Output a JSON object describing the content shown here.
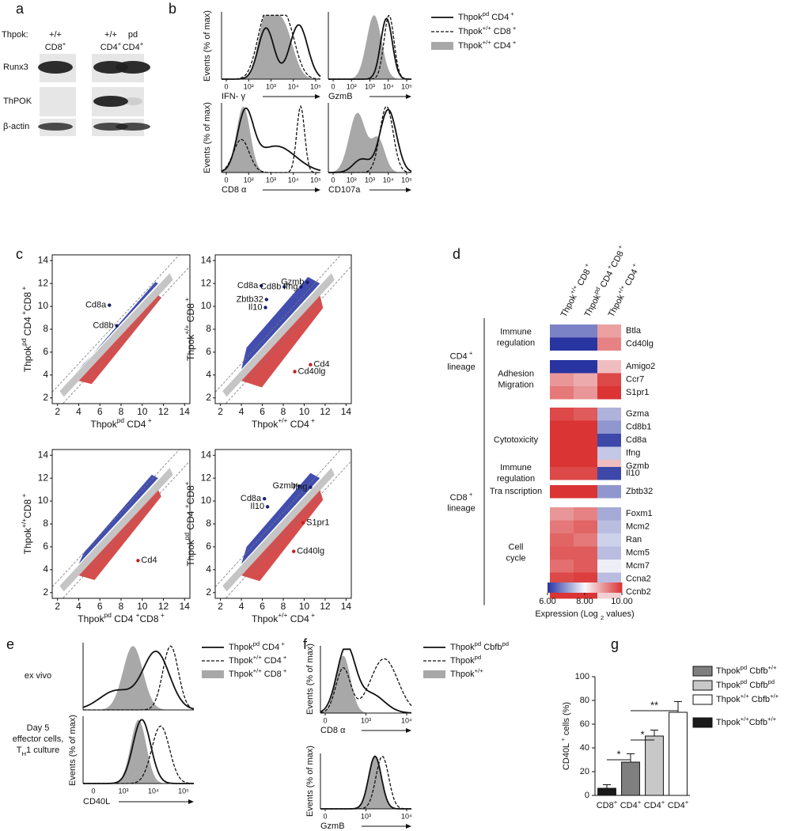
{
  "panel_labels": {
    "a": "a",
    "b": "b",
    "c": "c",
    "d": "d",
    "e": "e",
    "f": "f",
    "g": "g"
  },
  "a": {
    "row_label": "Thpok:",
    "genotypes": [
      "+/+",
      "+/+",
      "pd"
    ],
    "cells": [
      [
        "CD8",
        {
          "sup": "+"
        }
      ],
      [
        "CD4",
        {
          "sup": "+"
        }
      ],
      [
        "CD4",
        {
          "sup": "+"
        }
      ]
    ],
    "proteins": [
      "Runx3",
      "ThPOK",
      "β-actin"
    ]
  },
  "b": {
    "y_label": "Events (% of max)",
    "plots": [
      {
        "x_label": "IFN- γ",
        "ticks": [
          "0",
          "10²",
          "10³",
          "10⁴",
          "10⁵"
        ]
      },
      {
        "x_label": "GzmB",
        "ticks": [
          "0",
          "10²",
          "10³",
          "10⁴",
          "10⁵"
        ]
      },
      {
        "x_label": "CD8 α",
        "ticks": [
          "0",
          "10²",
          "10³",
          "10⁴",
          "10⁵"
        ]
      },
      {
        "x_label": "CD107a",
        "ticks": [
          "0",
          "10²",
          "10³",
          "10⁴",
          "10⁵"
        ]
      }
    ],
    "legend": [
      [
        "Thpok",
        {
          "sup": "pd"
        },
        " CD4",
        {
          "sup": " +"
        }
      ],
      [
        "Thpok",
        {
          "sup": "+/+"
        },
        " CD8",
        {
          "sup": " +"
        }
      ],
      [
        "Thpok",
        {
          "sup": "+/+"
        },
        " CD4",
        {
          "sup": " +"
        }
      ]
    ]
  },
  "c": {
    "xlim": [
      1.5,
      14.5
    ],
    "ylim": [
      1.5,
      14.5
    ],
    "xticks": [
      2,
      4,
      6,
      8,
      10,
      12,
      14
    ],
    "yticks": [
      2,
      4,
      6,
      8,
      10,
      12,
      14
    ],
    "plots": [
      {
        "x_label": [
          "Thpok",
          {
            "sup": "pd"
          },
          " CD4",
          {
            "sup": " +"
          }
        ],
        "y_label": [
          "Thpok",
          {
            "sup": "pd"
          },
          " CD4",
          {
            "sup": " +"
          },
          "CD8",
          {
            "sup": " +"
          }
        ],
        "genes": [
          {
            "name": "Cd8b",
            "x": 7.6,
            "y": 8.3
          },
          {
            "name": "Cd8a",
            "x": 6.9,
            "y": 10.1
          }
        ]
      },
      {
        "x_label": [
          "Thpok",
          {
            "sup": "+/+"
          },
          " CD4",
          {
            "sup": " +"
          }
        ],
        "y_label": [
          "Thpok",
          {
            "sup": "+/+"
          },
          " CD8",
          {
            "sup": " +"
          }
        ],
        "genes": [
          {
            "name": "Cd8a",
            "x": 5.9,
            "y": 11.8
          },
          {
            "name": "Cd8b",
            "x": 8.1,
            "y": 11.7
          },
          {
            "name": "Ifng",
            "x": 9.7,
            "y": 11.7
          },
          {
            "name": "Gzmb",
            "x": 10.3,
            "y": 12.1
          },
          {
            "name": "Zbtb32",
            "x": 6.4,
            "y": 10.6
          },
          {
            "name": "Il10",
            "x": 6.3,
            "y": 9.9
          },
          {
            "name": "Cd4",
            "x": 10.6,
            "y": 4.9
          },
          {
            "name": "Cd40lg",
            "x": 9.1,
            "y": 4.3
          }
        ]
      },
      {
        "x_label": [
          "Thpok",
          {
            "sup": "pd"
          },
          " CD4 ",
          {
            "sup": "+"
          },
          "CD8",
          {
            "sup": " +"
          }
        ],
        "y_label": [
          "Thpok",
          {
            "sup": "+/+"
          },
          "CD8",
          {
            "sup": " +"
          }
        ],
        "genes": [
          {
            "name": "Cd4",
            "x": 9.6,
            "y": 4.8
          }
        ]
      },
      {
        "x_label": [
          "Thpok",
          {
            "sup": "+/+"
          },
          " CD4",
          {
            "sup": " +"
          }
        ],
        "y_label": [
          "Thpok",
          {
            "sup": "pd"
          },
          " CD4 ",
          {
            "sup": "+"
          },
          "CD8",
          {
            "sup": "+"
          }
        ],
        "genes": [
          {
            "name": "Gzmb",
            "x": 9.5,
            "y": 11.3
          },
          {
            "name": "Ifng",
            "x": 10.6,
            "y": 11.2
          },
          {
            "name": "Cd8a",
            "x": 6.2,
            "y": 10.2
          },
          {
            "name": "Il10",
            "x": 6.5,
            "y": 9.5
          },
          {
            "name": "S1pr1",
            "x": 9.9,
            "y": 8.1
          },
          {
            "name": "Cd40lg",
            "x": 9.0,
            "y": 5.6
          }
        ]
      }
    ]
  },
  "d": {
    "columns": [
      [
        "Thpok",
        {
          "sup": "+/+"
        },
        " CD8",
        {
          "sup": " +"
        }
      ],
      [
        "Thpok",
        {
          "sup": "pd"
        },
        " CD4",
        {
          "sup": " +"
        },
        "CD8",
        {
          "sup": " +"
        }
      ],
      [
        "Thpok",
        {
          "sup": "+/+"
        },
        " CD4",
        {
          "sup": " +"
        }
      ]
    ],
    "lineages": [
      {
        "label_lines": [
          [
            "CD4",
            {
              "sup": " +"
            }
          ],
          "lineage"
        ],
        "groups": [
          {
            "label_lines": [
              "Immune",
              "regulation"
            ],
            "genes": [
              "Btla",
              "Cd40lg"
            ],
            "values": [
              [
                6.8,
                6.8,
                8.9
              ],
              [
                6.0,
                6.0,
                9.2
              ]
            ]
          },
          {
            "label_lines": [
              "Adhesion",
              "Migration"
            ],
            "genes": [
              "Amigo2",
              "Ccr7",
              "S1pr1"
            ],
            "values": [
              [
                6.0,
                6.0,
                8.6
              ],
              [
                9.0,
                8.8,
                9.8
              ],
              [
                9.3,
                9.0,
                10.0
              ]
            ]
          }
        ]
      },
      {
        "label_lines": [
          [
            "CD8",
            {
              "sup": " +"
            }
          ],
          "lineage"
        ],
        "groups": [
          {
            "label_lines": [
              "Cytotoxicity"
            ],
            "genes": [
              "Gzma",
              "Cd8b1",
              "Cd8a",
              "Ifng",
              "Gzmb"
            ],
            "values": [
              [
                9.8,
                9.6,
                7.3
              ],
              [
                10.0,
                10.0,
                7.0
              ],
              [
                10.0,
                10.0,
                6.2
              ],
              [
                10.0,
                10.0,
                7.5
              ],
              [
                10.0,
                10.0,
                8.6
              ]
            ]
          },
          {
            "label_lines": [
              "Immune",
              "regulation"
            ],
            "genes": [
              "Il10"
            ],
            "values": [
              [
                9.8,
                9.8,
                6.2
              ]
            ]
          },
          {
            "label_lines": [
              "Tra nscription"
            ],
            "genes": [
              "Zbtb32"
            ],
            "values": [
              [
                10.0,
                10.0,
                7.0
              ]
            ]
          },
          {
            "label_lines": [
              "Cell",
              "cycle"
            ],
            "genes": [
              "Foxm1",
              "Mcm2",
              "Ran",
              "Mcm5",
              "Mcm7",
              "Ccna2",
              "Ccnb2"
            ],
            "values": [
              [
                9.0,
                9.2,
                7.2
              ],
              [
                9.3,
                9.5,
                7.4
              ],
              [
                9.5,
                9.3,
                7.6
              ],
              [
                9.6,
                9.6,
                7.4
              ],
              [
                9.4,
                9.6,
                7.9
              ],
              [
                9.8,
                9.9,
                7.4
              ],
              [
                10.0,
                10.0,
                8.4
              ]
            ]
          }
        ]
      }
    ],
    "colorbar": {
      "lim": [
        6,
        10
      ],
      "ticks": [
        {
          "value": 6,
          "label": "6.00"
        },
        {
          "value": 8,
          "label": "8.00"
        },
        {
          "value": 10,
          "label": "10.00"
        }
      ],
      "caption": [
        "Expression (Log ",
        {
          "sub": "2"
        },
        " values)"
      ]
    }
  },
  "e": {
    "y_label": "Events (% of max)",
    "x_label": "CD40L",
    "ticks": [
      "0",
      "10³",
      "10⁴",
      "10⁵"
    ],
    "row_labels": [
      [
        "ex vivo"
      ],
      [
        "Day 5",
        "effector cells,",
        [
          "T",
          {
            "sub": "H"
          },
          "1 culture"
        ]
      ]
    ],
    "legend": [
      [
        "Thpok",
        {
          "sup": "pd"
        },
        " CD4",
        {
          "sup": " +"
        }
      ],
      [
        "Thpok",
        {
          "sup": "+/+"
        },
        " CD4",
        {
          "sup": " +"
        }
      ],
      [
        "Thpok",
        {
          "sup": "+/+"
        },
        " CD8",
        {
          "sup": " +"
        }
      ]
    ]
  },
  "f": {
    "y_label": "Events (% of max)",
    "plots": [
      {
        "x_label": "CD8 α",
        "ticks": [
          "0",
          "10³",
          "10⁴"
        ]
      },
      {
        "x_label": "GzmB",
        "ticks": [
          "0",
          "10³",
          "10⁴"
        ]
      }
    ],
    "legend": [
      [
        "Thpok",
        {
          "sup": "pd"
        },
        " Cbfb",
        {
          "sup": "pd"
        }
      ],
      [
        "Thpok",
        {
          "sup": "pd"
        }
      ],
      [
        "Thpok",
        {
          "sup": "+/+"
        }
      ]
    ]
  },
  "g": {
    "y_label": [
      "CD40L",
      {
        "sup": " +"
      },
      " cells (%)"
    ],
    "ylim": [
      0,
      100
    ],
    "yticks": [
      0,
      20,
      40,
      60,
      80,
      100
    ],
    "categories": [
      [
        "CD8",
        {
          "sup": "+"
        }
      ],
      [
        "CD4",
        {
          "sup": "+"
        }
      ],
      [
        "CD4",
        {
          "sup": "+"
        }
      ],
      [
        "CD4",
        {
          "sup": "+"
        }
      ]
    ],
    "values": [
      6,
      28,
      50,
      70
    ],
    "errors": [
      3,
      7,
      5,
      9
    ],
    "colors": [
      "#1a1a1a",
      "#7f7f7f",
      "#c8c8c8",
      "#ffffff"
    ],
    "annotations": [
      "*",
      "*",
      "**"
    ],
    "legend": [
      {
        "label": [
          "Thpok",
          {
            "sup": "pd"
          },
          " Cbfb",
          {
            "sup": "+/+"
          }
        ],
        "color": "#7f7f7f"
      },
      {
        "label": [
          "Thpok",
          {
            "sup": "pd"
          },
          " Cbfb",
          {
            "sup": "pd"
          }
        ],
        "color": "#c8c8c8"
      },
      {
        "label": [
          "Thpok",
          {
            "sup": "+/+"
          },
          " Cbfb",
          {
            "sup": "+/+"
          }
        ],
        "color": "#ffffff"
      },
      {
        "label": [
          "Thpok",
          {
            "sup": "+/+"
          },
          "Cbfb",
          {
            "sup": "+/+"
          }
        ],
        "color": "#1a1a1a"
      }
    ]
  }
}
